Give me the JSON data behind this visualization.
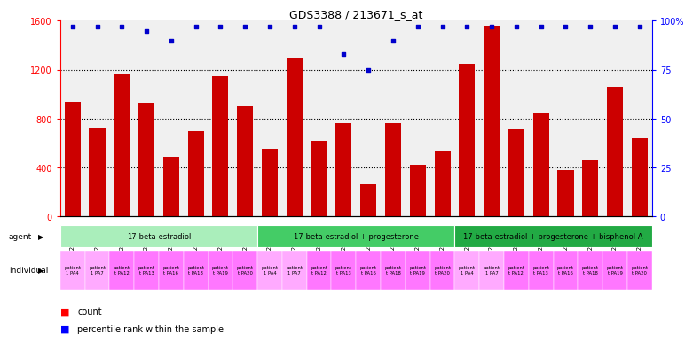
{
  "title": "GDS3388 / 213671_s_at",
  "samples": [
    "GSM259339",
    "GSM259345",
    "GSM259359",
    "GSM259365",
    "GSM259377",
    "GSM259386",
    "GSM259392",
    "GSM259395",
    "GSM259341",
    "GSM259346",
    "GSM259360",
    "GSM259367",
    "GSM259378",
    "GSM259387",
    "GSM259393",
    "GSM259396",
    "GSM259342",
    "GSM259349",
    "GSM259361",
    "GSM259368",
    "GSM259379",
    "GSM259388",
    "GSM259394",
    "GSM259397"
  ],
  "counts": [
    940,
    730,
    1170,
    930,
    490,
    700,
    1150,
    900,
    550,
    1300,
    620,
    760,
    265,
    760,
    420,
    540,
    1250,
    1560,
    710,
    850,
    380,
    460,
    1060,
    640
  ],
  "percentile_ranks": [
    97,
    97,
    97,
    95,
    90,
    97,
    97,
    97,
    97,
    97,
    97,
    83,
    75,
    90,
    97,
    97,
    97,
    97,
    97,
    97,
    97,
    97,
    97,
    97
  ],
  "agents": [
    {
      "label": "17-beta-estradiol",
      "start": 0,
      "end": 8,
      "color": "#AAEEBB"
    },
    {
      "label": "17-beta-estradiol + progesterone",
      "start": 8,
      "end": 16,
      "color": "#44CC66"
    },
    {
      "label": "17-beta-estradiol + progesterone + bisphenol A",
      "start": 16,
      "end": 24,
      "color": "#22AA44"
    }
  ],
  "ind_labels": [
    "patient\n1 PA4",
    "patient\n1 PA7",
    "patient\nt PA12",
    "patient\nt PA13",
    "patient\nt PA16",
    "patient\nt PA18",
    "patient\nt PA19",
    "patient\nt PA20",
    "patient\n1 PA4",
    "patient\n1 PA7",
    "patient\nt PA12",
    "patient\nt PA13",
    "patient\nt PA16",
    "patient\nt PA18",
    "patient\nt PA19",
    "patient\nt PA20",
    "patient\n1 PA4",
    "patient\n1 PA7",
    "patient\nt PA12",
    "patient\nt PA13",
    "patient\nt PA16",
    "patient\nt PA18",
    "patient\nt PA19",
    "patient\nt PA20"
  ],
  "ind_colors": [
    "#FFAAFF",
    "#FFAAFF",
    "#FF77FF",
    "#FF77FF",
    "#FF77FF",
    "#FF77FF",
    "#FF77FF",
    "#FF77FF",
    "#FFAAFF",
    "#FFAAFF",
    "#FF77FF",
    "#FF77FF",
    "#FF77FF",
    "#FF77FF",
    "#FF77FF",
    "#FF77FF",
    "#FFAAFF",
    "#FFAAFF",
    "#FF77FF",
    "#FF77FF",
    "#FF77FF",
    "#FF77FF",
    "#FF77FF",
    "#FF77FF"
  ],
  "bar_color": "#CC0000",
  "dot_color": "#0000CC",
  "ylim_left": [
    0,
    1600
  ],
  "ylim_right": [
    0,
    100
  ],
  "yticks_left": [
    0,
    400,
    800,
    1200,
    1600
  ],
  "yticks_right": [
    0,
    25,
    50,
    75,
    100
  ],
  "background_color": "#FFFFFF",
  "plot_bg_color": "#F0F0F0"
}
